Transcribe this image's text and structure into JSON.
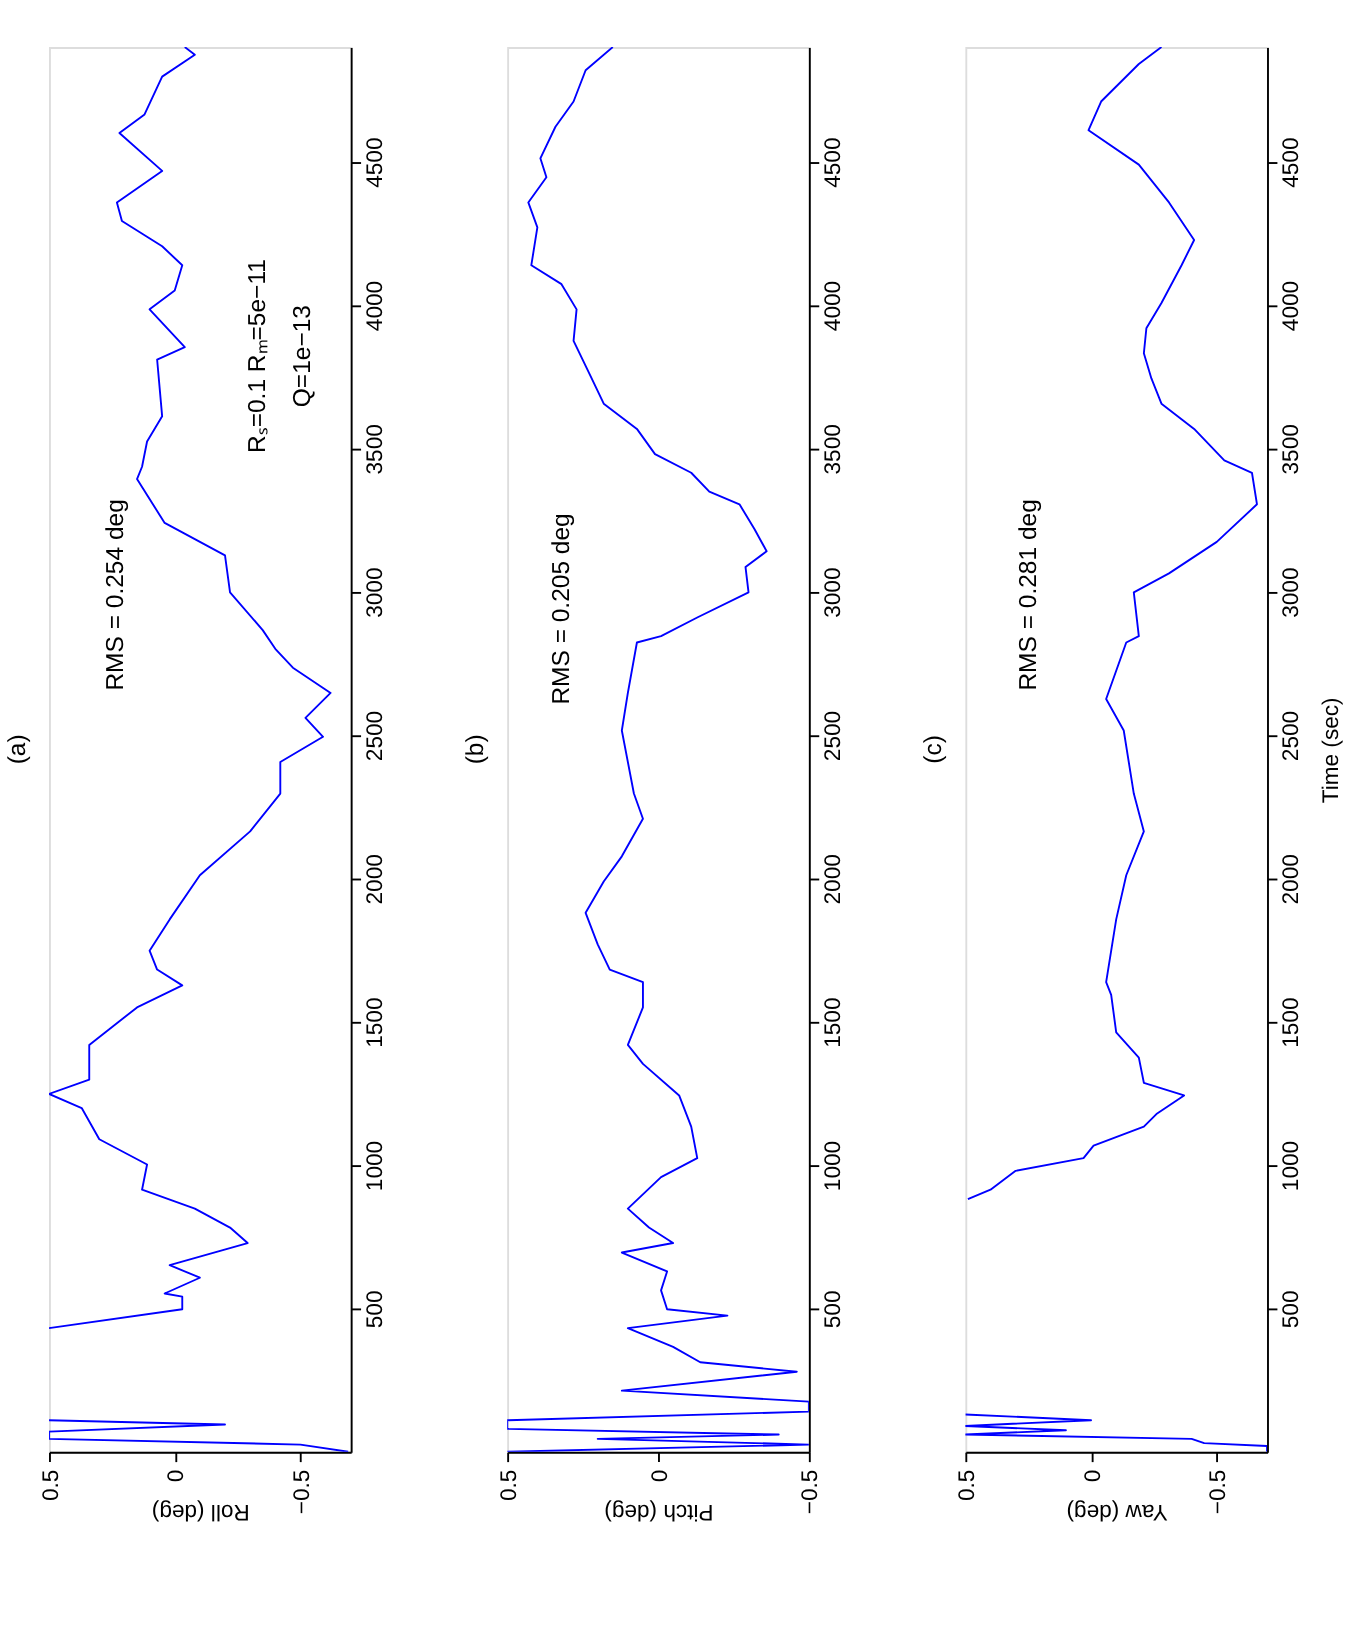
{
  "chart_data": [
    {
      "type": "line",
      "orientation": "horizontal",
      "title": "(a)",
      "xlabel": "Roll (deg)",
      "ylim": [
        0,
        4900
      ],
      "xlim": [
        0.5,
        -0.7
      ],
      "yticks": [
        500,
        1000,
        1500,
        2000,
        2500,
        3000,
        3500,
        4000,
        4500
      ],
      "xticks": [
        0.5,
        0,
        -0.5
      ],
      "x": [
        0,
        25,
        45,
        70,
        95,
        110,
        130,
        431,
        497,
        541,
        552,
        607,
        651,
        728,
        782,
        848,
        914,
        1002,
        1090,
        1199,
        1248,
        1298,
        1419,
        1550,
        1627,
        1682,
        1748,
        1857,
        2011,
        2164,
        2296,
        2406,
        2494,
        2560,
        2647,
        2735,
        2801,
        2866,
        2998,
        3127,
        3240,
        3393,
        3436,
        3524,
        3612,
        3810,
        3853,
        3985,
        4051,
        4139,
        4205,
        4293,
        4358,
        4468,
        4600,
        4665,
        4797,
        4873,
        4900
      ],
      "series": [
        {
          "color": "#0000ff",
          "values": [
            -0.69,
            -0.5,
            0.5,
            0.5,
            -0.2,
            0.5,
            null,
            0.5,
            -0.03,
            -0.03,
            0.04,
            -0.1,
            0.02,
            -0.29,
            -0.22,
            -0.08,
            0.13,
            0.11,
            0.3,
            0.37,
            0.5,
            0.34,
            0.34,
            0.15,
            -0.03,
            0.07,
            0.1,
            0.02,
            -0.1,
            -0.3,
            -0.42,
            -0.42,
            -0.59,
            -0.52,
            -0.62,
            -0.47,
            -0.4,
            -0.35,
            -0.22,
            -0.2,
            0.04,
            0.15,
            0.13,
            0.11,
            0.05,
            0.07,
            -0.04,
            0.1,
            0.0,
            -0.03,
            0.05,
            0.21,
            0.23,
            0.05,
            0.22,
            0.12,
            0.05,
            -0.08,
            -0.04
          ]
        }
      ],
      "annotations": [
        "RMS = 0.254 deg",
        "Rₛ=0.1  Rₘ=5e−11",
        "Q=1e−13"
      ]
    },
    {
      "type": "line",
      "orientation": "horizontal",
      "title": "(b)",
      "xlabel": "Pitch (deg)",
      "ylim": [
        0,
        4900
      ],
      "xlim": [
        0.5,
        -0.5
      ],
      "yticks": [
        500,
        1000,
        1500,
        2000,
        2500,
        3000,
        3500,
        4000,
        4500
      ],
      "xticks": [
        0.5,
        0,
        -0.5
      ],
      "x": [
        0,
        25,
        45,
        60,
        80,
        110,
        140,
        175,
        213,
        279,
        312,
        366,
        431,
        475,
        497,
        563,
        629,
        695,
        728,
        782,
        848,
        958,
        1024,
        1134,
        1243,
        1353,
        1419,
        1550,
        1638,
        1682,
        1770,
        1880,
        1989,
        2077,
        2208,
        2296,
        2516,
        2647,
        2823,
        2845,
        2910,
        2998,
        3086,
        3141,
        3218,
        3305,
        3349,
        3415,
        3480,
        3568,
        3656,
        3744,
        3875,
        3985,
        4073,
        4139,
        4271,
        4358,
        4446,
        4512,
        4622,
        4710,
        4819,
        4900
      ],
      "series": [
        {
          "color": "#0000ff",
          "values": [
            0.5,
            -0.5,
            0.2,
            -0.4,
            0.5,
            0.5,
            -0.5,
            -0.5,
            0.12,
            -0.46,
            -0.14,
            -0.05,
            0.1,
            -0.23,
            -0.03,
            -0.01,
            -0.03,
            0.12,
            -0.05,
            0.03,
            0.1,
            -0.01,
            -0.13,
            -0.11,
            -0.07,
            0.05,
            0.1,
            0.05,
            0.05,
            0.16,
            0.2,
            0.24,
            0.18,
            0.12,
            0.05,
            0.08,
            0.12,
            0.1,
            0.07,
            -0.01,
            -0.13,
            -0.3,
            -0.29,
            -0.36,
            -0.32,
            -0.27,
            -0.17,
            -0.11,
            0.01,
            0.07,
            0.18,
            0.22,
            0.28,
            0.27,
            0.32,
            0.42,
            0.4,
            0.43,
            0.37,
            0.39,
            0.34,
            0.28,
            0.24,
            0.15
          ]
        }
      ],
      "annotations": [
        "RMS = 0.205 deg"
      ]
    },
    {
      "type": "line",
      "orientation": "horizontal",
      "title": "(c)",
      "ylabel": "Time (sec)",
      "xlabel": "Yaw (deg)",
      "ylim": [
        0,
        4900
      ],
      "xlim": [
        0.5,
        -0.7
      ],
      "yticks": [
        500,
        1000,
        1500,
        2000,
        2500,
        3000,
        3500,
        4000,
        4500
      ],
      "xticks": [
        0.5,
        0,
        -0.5
      ],
      "x": [
        0,
        20,
        30,
        45,
        60,
        75,
        90,
        110,
        130,
        150,
        881,
        914,
        980,
        1024,
        1068,
        1134,
        1178,
        1243,
        1287,
        1375,
        1463,
        1594,
        1638,
        1857,
        2011,
        2164,
        2296,
        2516,
        2626,
        2823,
        2845,
        2998,
        3064,
        3174,
        3305,
        3415,
        3458,
        3568,
        3656,
        3744,
        3832,
        3919,
        4007,
        4139,
        4227,
        4358,
        4490,
        4610,
        4710,
        4841,
        4900
      ],
      "series": [
        {
          "color": "#0000ff",
          "values": [
            -0.7,
            -0.7,
            -0.45,
            -0.4,
            0.5,
            0.1,
            0.5,
            0.0,
            0.5,
            null,
            0.49,
            0.4,
            0.3,
            0.03,
            -0.01,
            -0.21,
            -0.26,
            -0.37,
            -0.21,
            -0.19,
            -0.1,
            -0.08,
            -0.06,
            -0.1,
            -0.14,
            -0.21,
            -0.17,
            -0.13,
            -0.06,
            -0.14,
            -0.19,
            -0.17,
            -0.31,
            -0.5,
            -0.66,
            -0.64,
            -0.53,
            -0.41,
            -0.28,
            -0.24,
            -0.21,
            -0.22,
            -0.28,
            -0.36,
            -0.41,
            -0.31,
            -0.19,
            0.01,
            -0.04,
            -0.19,
            -0.28
          ]
        }
      ],
      "annotations": [
        "RMS = 0.281 deg"
      ]
    }
  ]
}
